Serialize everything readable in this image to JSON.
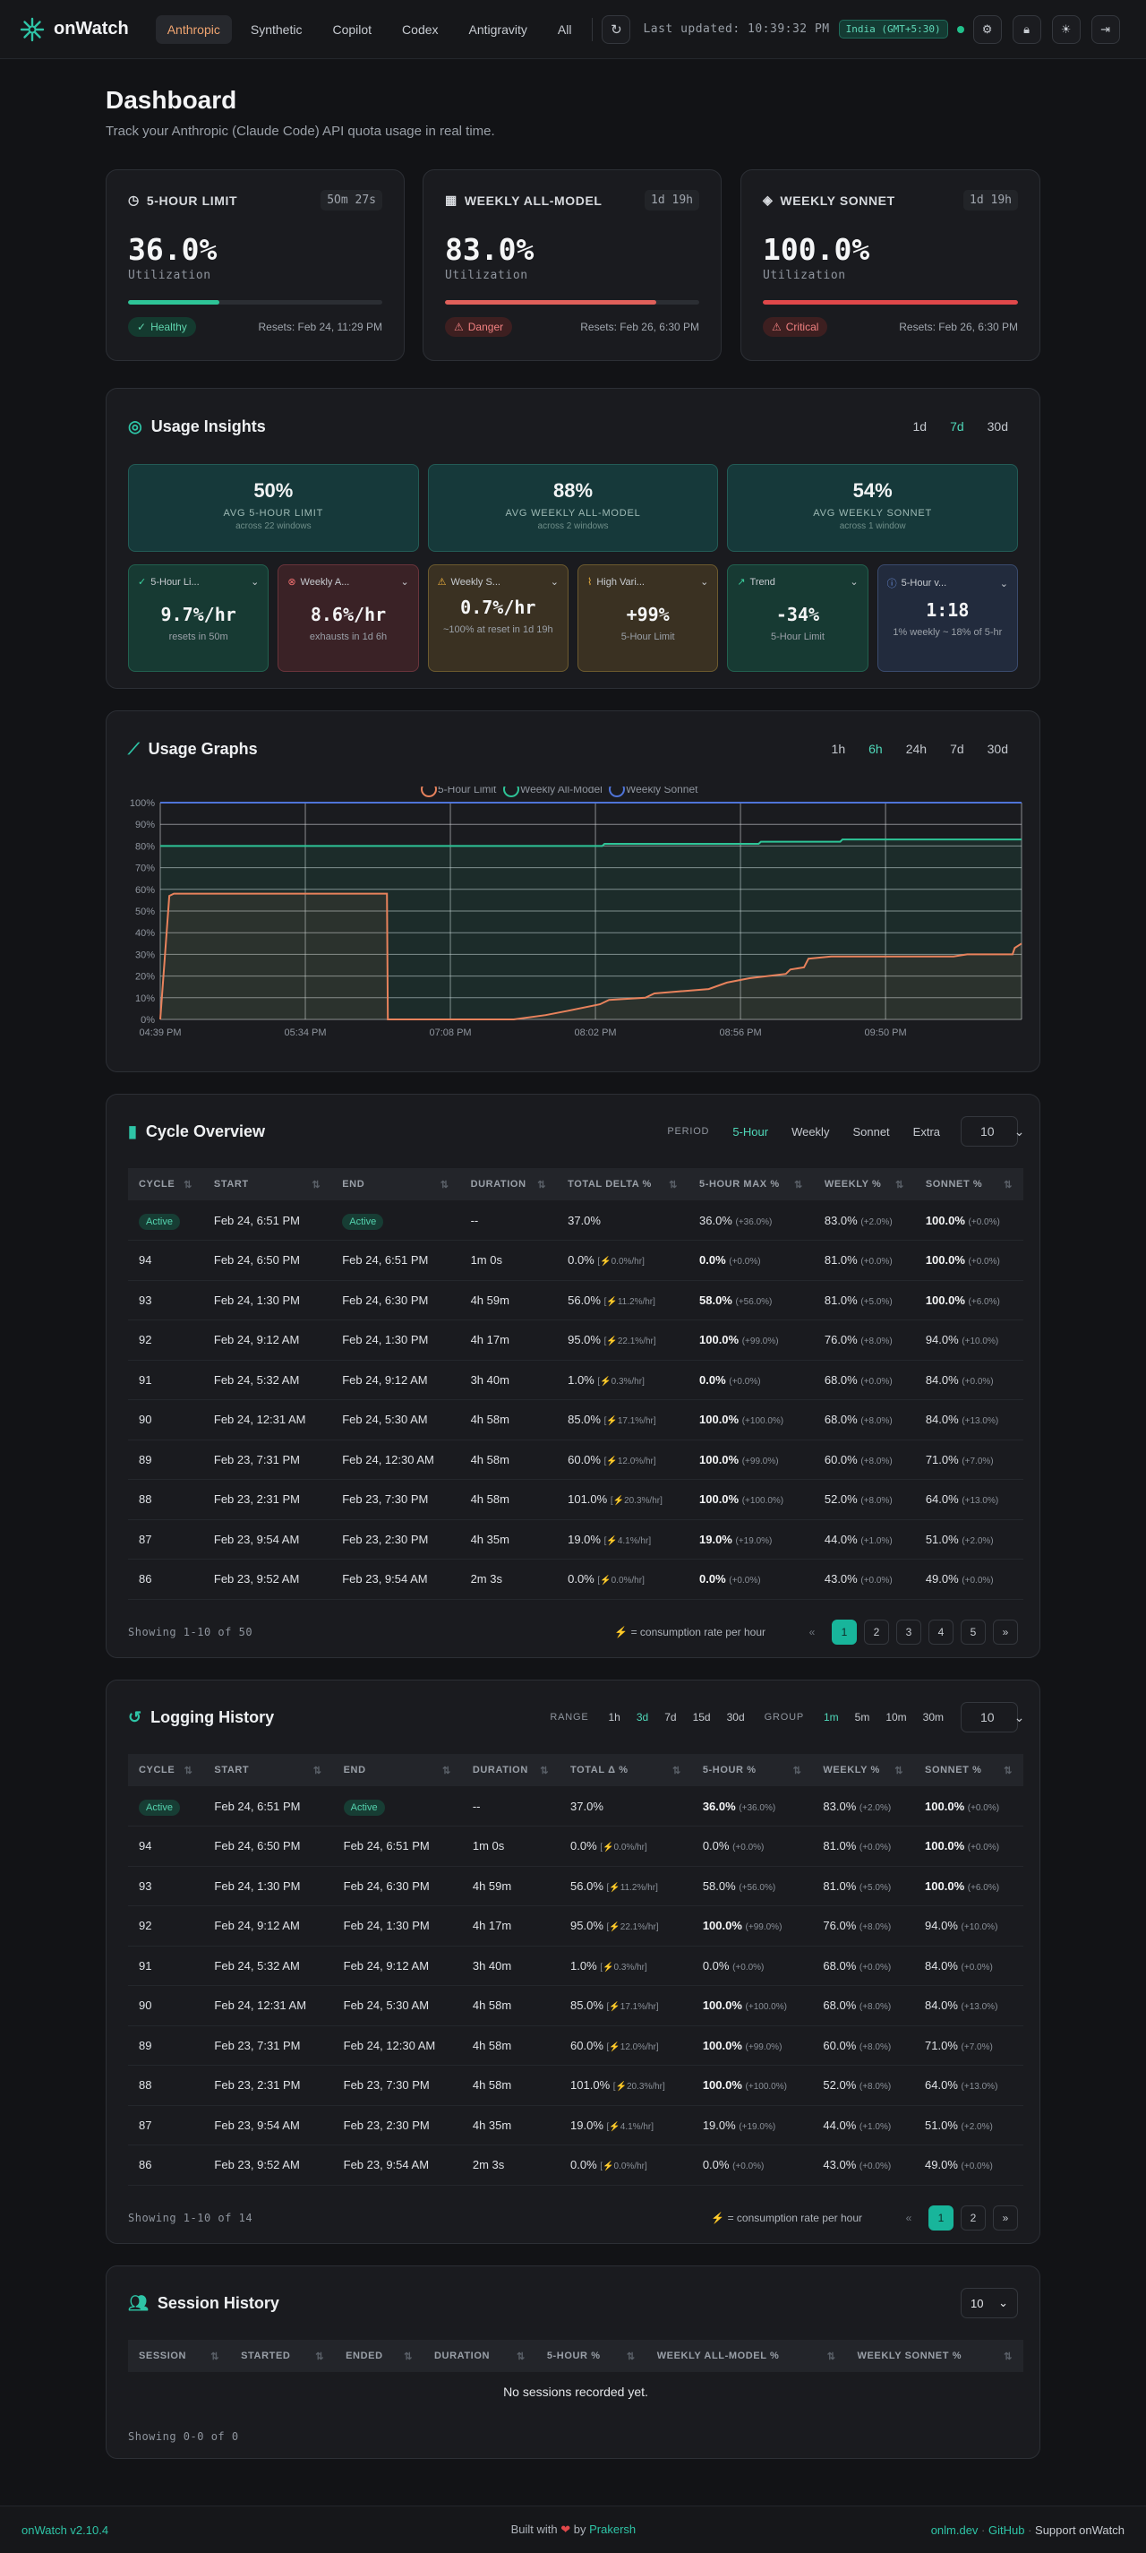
{
  "app": {
    "name": "onWatch",
    "version": "onWatch v2.10.4"
  },
  "providers": [
    "Anthropic",
    "Synthetic",
    "Copilot",
    "Codex",
    "Antigravity",
    "All"
  ],
  "header": {
    "last_updated": "Last updated: 10:39:32 PM",
    "timezone": "India (GMT+5:30)"
  },
  "page": {
    "title": "Dashboard",
    "subtitle": "Track your Anthropic (Claude Code) API quota usage in real time."
  },
  "quotas": [
    {
      "name": "5-HOUR LIMIT",
      "time": "5Om 27s",
      "value": "36.0%",
      "label": "Utilization",
      "fill": 0.36,
      "color": "#2ec497",
      "status": "Healthy",
      "resets": "Resets: Feb 24, 11:29 PM"
    },
    {
      "name": "WEEKLY ALL-MODEL",
      "time": "1d 19h",
      "value": "83.0%",
      "label": "Utilization",
      "fill": 0.83,
      "color": "#e0605a",
      "status": "Danger",
      "resets": "Resets: Feb 26, 6:30 PM"
    },
    {
      "name": "WEEKLY SONNET",
      "time": "1d 19h",
      "value": "100.0%",
      "label": "Utilization",
      "fill": 1.0,
      "color": "#e0484a",
      "status": "Critical",
      "resets": "Resets: Feb 26, 6:30 PM"
    }
  ],
  "insights": {
    "title": "Usage Insights",
    "ranges": [
      "1d",
      "7d",
      "30d"
    ],
    "averages": [
      {
        "value": "50%",
        "label": "AVG 5-HOUR LIMIT",
        "sub": "across 22 windows"
      },
      {
        "value": "88%",
        "label": "AVG WEEKLY ALL-MODEL",
        "sub": "across 2 windows"
      },
      {
        "value": "54%",
        "label": "AVG WEEKLY SONNET",
        "sub": "across 1 window"
      }
    ],
    "cards": [
      {
        "title": "5-Hour Li...",
        "value": "9.7%/hr",
        "sub": "resets in 50m"
      },
      {
        "title": "Weekly A...",
        "value": "8.6%/hr",
        "sub": "exhausts in 1d 6h"
      },
      {
        "title": "Weekly S...",
        "value": "0.7%/hr",
        "sub": "~100% at reset in 1d 19h"
      },
      {
        "title": "High Vari...",
        "value": "+99%",
        "sub": "5-Hour Limit"
      },
      {
        "title": "Trend",
        "value": "-34%",
        "sub": "5-Hour Limit"
      },
      {
        "title": "5-Hour v...",
        "value": "1:18",
        "sub": "1% weekly ~ 18% of 5-hr"
      }
    ]
  },
  "graphs": {
    "title": "Usage Graphs",
    "ranges": [
      "1h",
      "6h",
      "24h",
      "7d",
      "30d"
    ]
  },
  "chart_data": {
    "type": "line",
    "series": [
      {
        "name": "5-Hour Limit",
        "color": "#e8825c",
        "points": [
          [
            0,
            0
          ],
          [
            0.2,
            57
          ],
          [
            0.3,
            58
          ],
          [
            5,
            58
          ],
          [
            5.02,
            0
          ],
          [
            7.8,
            0
          ],
          [
            8.5,
            2
          ],
          [
            9,
            4
          ],
          [
            9.7,
            7
          ],
          [
            9.9,
            9
          ],
          [
            10.7,
            10
          ],
          [
            10.9,
            12
          ],
          [
            11.5,
            13
          ],
          [
            12.1,
            14
          ],
          [
            12.5,
            17
          ],
          [
            13,
            19
          ],
          [
            13.8,
            21
          ],
          [
            13.9,
            23
          ],
          [
            14.2,
            24
          ],
          [
            14.3,
            28
          ],
          [
            14.8,
            29
          ],
          [
            17.5,
            29
          ],
          [
            17.8,
            30
          ],
          [
            18.8,
            30
          ],
          [
            18.85,
            33
          ],
          [
            19,
            35
          ]
        ]
      },
      {
        "name": "Weekly All-Model",
        "color": "#2ec497",
        "points": [
          [
            0,
            80
          ],
          [
            9.75,
            80
          ],
          [
            9.8,
            81
          ],
          [
            13.2,
            81
          ],
          [
            13.25,
            82
          ],
          [
            15,
            82
          ],
          [
            15.05,
            83
          ],
          [
            19,
            83
          ]
        ]
      },
      {
        "name": "Weekly Sonnet",
        "color": "#4f74d8",
        "points": [
          [
            0,
            100
          ],
          [
            19,
            100
          ]
        ]
      }
    ],
    "x_ticks": [
      "04:39 PM",
      "05:34 PM",
      "07:08 PM",
      "08:02 PM",
      "08:56 PM",
      "09:50 PM"
    ],
    "y_ticks": [
      "0%",
      "10%",
      "20%",
      "30%",
      "40%",
      "50%",
      "60%",
      "70%",
      "80%",
      "90%",
      "100%"
    ],
    "ylim": [
      0,
      100
    ],
    "grid": true,
    "legend": "top-center"
  },
  "cycles": {
    "title": "Cycle Overview",
    "period_label": "PERIOD",
    "periods": [
      "5-Hour",
      "Weekly",
      "Sonnet",
      "Extra"
    ],
    "page_size": "10",
    "columns": [
      "CYCLE",
      "START",
      "END",
      "DURATION",
      "TOTAL DELTA %",
      "5-HOUR MAX %",
      "WEEKLY %",
      "SONNET %"
    ],
    "rows": [
      [
        "Active",
        "Feb 24, 6:51 PM",
        "Active",
        "--",
        "37.0%",
        "",
        "36.0%",
        "(+36.0%)",
        "83.0%",
        "(+2.0%)",
        "100.0%",
        "(+0.0%)"
      ],
      [
        "94",
        "Feb 24, 6:50 PM",
        "Feb 24, 6:51 PM",
        "1m 0s",
        "0.0%",
        "0.0%/hr",
        "0.0%",
        "(+0.0%)",
        "81.0%",
        "(+0.0%)",
        "100.0%",
        "(+0.0%)"
      ],
      [
        "93",
        "Feb 24, 1:30 PM",
        "Feb 24, 6:30 PM",
        "4h 59m",
        "56.0%",
        "11.2%/hr",
        "58.0%",
        "(+56.0%)",
        "81.0%",
        "(+5.0%)",
        "100.0%",
        "(+6.0%)"
      ],
      [
        "92",
        "Feb 24, 9:12 AM",
        "Feb 24, 1:30 PM",
        "4h 17m",
        "95.0%",
        "22.1%/hr",
        "100.0%",
        "(+99.0%)",
        "76.0%",
        "(+8.0%)",
        "94.0%",
        "(+10.0%)"
      ],
      [
        "91",
        "Feb 24, 5:32 AM",
        "Feb 24, 9:12 AM",
        "3h 40m",
        "1.0%",
        "0.3%/hr",
        "0.0%",
        "(+0.0%)",
        "68.0%",
        "(+0.0%)",
        "84.0%",
        "(+0.0%)"
      ],
      [
        "90",
        "Feb 24, 12:31 AM",
        "Feb 24, 5:30 AM",
        "4h 58m",
        "85.0%",
        "17.1%/hr",
        "100.0%",
        "(+100.0%)",
        "68.0%",
        "(+8.0%)",
        "84.0%",
        "(+13.0%)"
      ],
      [
        "89",
        "Feb 23, 7:31 PM",
        "Feb 24, 12:30 AM",
        "4h 58m",
        "60.0%",
        "12.0%/hr",
        "100.0%",
        "(+99.0%)",
        "60.0%",
        "(+8.0%)",
        "71.0%",
        "(+7.0%)"
      ],
      [
        "88",
        "Feb 23, 2:31 PM",
        "Feb 23, 7:30 PM",
        "4h 58m",
        "101.0%",
        "20.3%/hr",
        "100.0%",
        "(+100.0%)",
        "52.0%",
        "(+8.0%)",
        "64.0%",
        "(+13.0%)"
      ],
      [
        "87",
        "Feb 23, 9:54 AM",
        "Feb 23, 2:30 PM",
        "4h 35m",
        "19.0%",
        "4.1%/hr",
        "19.0%",
        "(+19.0%)",
        "44.0%",
        "(+1.0%)",
        "51.0%",
        "(+2.0%)"
      ],
      [
        "86",
        "Feb 23, 9:52 AM",
        "Feb 23, 9:54 AM",
        "2m 3s",
        "0.0%",
        "0.0%/hr",
        "0.0%",
        "(+0.0%)",
        "43.0%",
        "(+0.0%)",
        "49.0%",
        "(+0.0%)"
      ]
    ],
    "showing": "Showing 1-10 of 50",
    "legend": "= consumption rate per hour",
    "pages": [
      "1",
      "2",
      "3",
      "4",
      "5"
    ]
  },
  "logging": {
    "title": "Logging History",
    "range_label": "RANGE",
    "ranges": [
      "1h",
      "3d",
      "7d",
      "15d",
      "30d"
    ],
    "group_label": "GROUP",
    "groups": [
      "1m",
      "5m",
      "10m",
      "30m"
    ],
    "page_size": "10",
    "columns": [
      "CYCLE",
      "START",
      "END",
      "DURATION",
      "TOTAL Δ %",
      "5-HOUR %",
      "WEEKLY %",
      "SONNET %"
    ],
    "showing": "Showing 1-10 of 14",
    "legend": "= consumption rate per hour",
    "pages": [
      "1",
      "2"
    ]
  },
  "sessions": {
    "title": "Session History",
    "page_size": "10",
    "columns": [
      "SESSION",
      "STARTED",
      "ENDED",
      "DURATION",
      "5-HOUR %",
      "WEEKLY ALL-MODEL %",
      "WEEKLY SONNET %"
    ],
    "empty": "No sessions recorded yet.",
    "showing": "Showing 0-0 of 0"
  },
  "footer": {
    "built": "Built with",
    "by": "by",
    "author": "Prakersh",
    "links": [
      "onlm.dev",
      "GitHub",
      "Support onWatch"
    ]
  }
}
